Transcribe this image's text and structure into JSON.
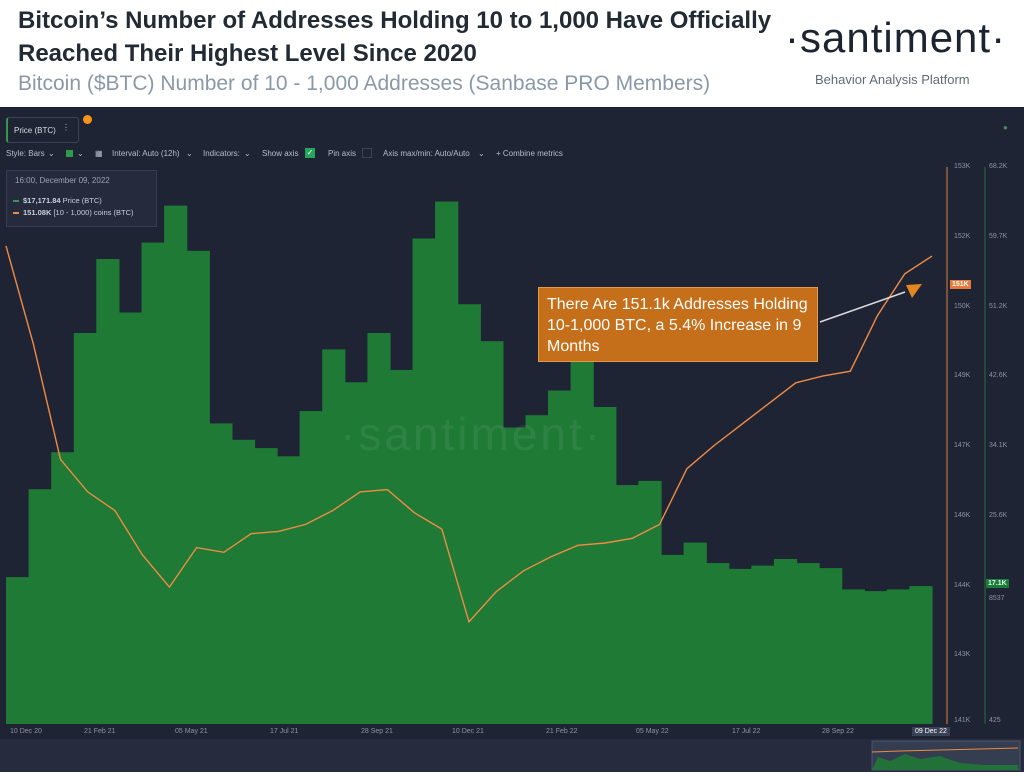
{
  "header": {
    "title": "Bitcoin’s Number of Addresses Holding 10 to 1,000 Have Officially Reached Their Highest Level Since 2020",
    "subtitle": "Bitcoin ($BTC) Number of 10 - 1,000 Addresses (Sanbase PRO Members)",
    "brand": "·santiment·",
    "tagline": "Behavior Analysis Platform"
  },
  "toolbar": {
    "metric": "Price (BTC)",
    "style": "Style: Bars",
    "interval": "Interval: Auto (12h)",
    "indicators": "Indicators:",
    "show_axis": "Show axis",
    "pin_axis": "Pin axis",
    "axis_maxmin": "Axis max/min: Auto/Auto",
    "combine": "+ Combine metrics"
  },
  "tooltip": {
    "date": "16:00, December 09, 2022",
    "price_value": "$17,171.84",
    "price_label": "Price (BTC)",
    "addr_value": "151.08K",
    "addr_label": "[10 - 1,000) coins (BTC)"
  },
  "annotation": "There Are 151.1k Addresses Holding 10-1,000 BTC, a 5.4% Increase in 9 Months",
  "watermark": "·santiment·",
  "badges": {
    "addresses": "151K",
    "price": "17.1K"
  },
  "date_tag": "09 Dec 22",
  "colors": {
    "price": "#1e7a35",
    "addresses": "#f08b44",
    "background": "#1f2434",
    "callout": "#c56f1b"
  },
  "chart_data": {
    "type": "line",
    "x_tick_labels": [
      "10 Dec 20",
      "21 Feb 21",
      "05 May 21",
      "17 Jul 21",
      "28 Sep 21",
      "10 Dec 21",
      "21 Feb 22",
      "05 May 22",
      "17 Jul 22",
      "28 Sep 22",
      "09 Dec 22"
    ],
    "left_axis_ticks": [
      "153K",
      "152K",
      "150K",
      "149K",
      "147K",
      "146K",
      "144K",
      "143K",
      "141K"
    ],
    "right_axis_ticks": [
      "68.2K",
      "59.7K",
      "51.2K",
      "42.6K",
      "34.1K",
      "25.6K",
      "17.1K",
      "8537",
      "425"
    ],
    "addr_ylim": [
      141000,
      153000
    ],
    "price_ylim": [
      425,
      68200
    ],
    "series": [
      {
        "name": "Price (BTC)",
        "style": "bars",
        "values": [
          18300,
          29000,
          33500,
          48000,
          57000,
          50500,
          59000,
          63500,
          58000,
          37000,
          35000,
          34000,
          33000,
          38500,
          46000,
          42000,
          48000,
          43500,
          59500,
          64000,
          51500,
          47000,
          36500,
          38000,
          41000,
          46000,
          39000,
          29500,
          30000,
          21000,
          22500,
          20000,
          19300,
          19700,
          20500,
          20000,
          19400,
          16800,
          16600,
          16800,
          17200
        ]
      },
      {
        "name": "[10 - 1,000) coins (BTC)",
        "style": "line",
        "values": [
          151300,
          149200,
          146700,
          146000,
          145600,
          144650,
          143950,
          144800,
          144700,
          145100,
          145150,
          145300,
          145600,
          146000,
          146050,
          145550,
          145200,
          143200,
          143850,
          144300,
          144600,
          144850,
          144900,
          145000,
          145300,
          146500,
          147000,
          147450,
          147900,
          148350,
          148500,
          148600,
          149800,
          150700,
          151080
        ]
      }
    ]
  }
}
